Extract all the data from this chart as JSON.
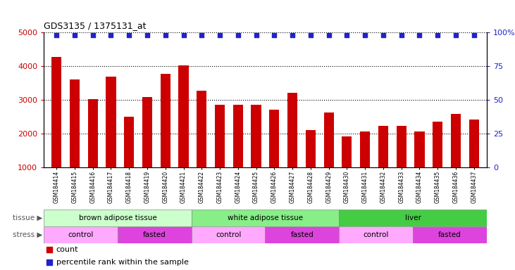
{
  "title": "GDS3135 / 1375131_at",
  "samples": [
    "GSM184414",
    "GSM184415",
    "GSM184416",
    "GSM184417",
    "GSM184418",
    "GSM184419",
    "GSM184420",
    "GSM184421",
    "GSM184422",
    "GSM184423",
    "GSM184424",
    "GSM184425",
    "GSM184426",
    "GSM184427",
    "GSM184428",
    "GSM184429",
    "GSM184430",
    "GSM184431",
    "GSM184432",
    "GSM184433",
    "GSM184434",
    "GSM184435",
    "GSM184436",
    "GSM184437"
  ],
  "counts": [
    4280,
    3620,
    3040,
    3700,
    2520,
    3100,
    3780,
    4030,
    3280,
    2870,
    2870,
    2870,
    2720,
    3220,
    2110,
    2640,
    1920,
    2080,
    2230,
    2240,
    2080,
    2360,
    2600,
    2430
  ],
  "bar_color": "#cc0000",
  "percentile_color": "#2222cc",
  "ylim_left": [
    1000,
    5000
  ],
  "ylim_right": [
    0,
    100
  ],
  "yticks_left": [
    1000,
    2000,
    3000,
    4000,
    5000
  ],
  "yticks_right": [
    0,
    25,
    50,
    75,
    100
  ],
  "ytick_labels_right": [
    "0",
    "25",
    "50",
    "75",
    "100%"
  ],
  "background_color": "#ffffff",
  "plot_bg_color": "#ffffff",
  "grid_color": "#000000",
  "tissue_groups": [
    {
      "label": "brown adipose tissue",
      "start": 0,
      "end": 8,
      "color": "#ccffcc"
    },
    {
      "label": "white adipose tissue",
      "start": 8,
      "end": 16,
      "color": "#88ee88"
    },
    {
      "label": "liver",
      "start": 16,
      "end": 24,
      "color": "#44cc44"
    }
  ],
  "stress_groups": [
    {
      "label": "control",
      "start": 0,
      "end": 4,
      "color": "#ffaaff"
    },
    {
      "label": "fasted",
      "start": 4,
      "end": 8,
      "color": "#dd44dd"
    },
    {
      "label": "control",
      "start": 8,
      "end": 12,
      "color": "#ffaaff"
    },
    {
      "label": "fasted",
      "start": 12,
      "end": 16,
      "color": "#dd44dd"
    },
    {
      "label": "control",
      "start": 16,
      "end": 20,
      "color": "#ffaaff"
    },
    {
      "label": "fasted",
      "start": 20,
      "end": 24,
      "color": "#dd44dd"
    }
  ],
  "legend_items": [
    {
      "label": "count",
      "color": "#cc0000"
    },
    {
      "label": "percentile rank within the sample",
      "color": "#2222cc"
    }
  ]
}
